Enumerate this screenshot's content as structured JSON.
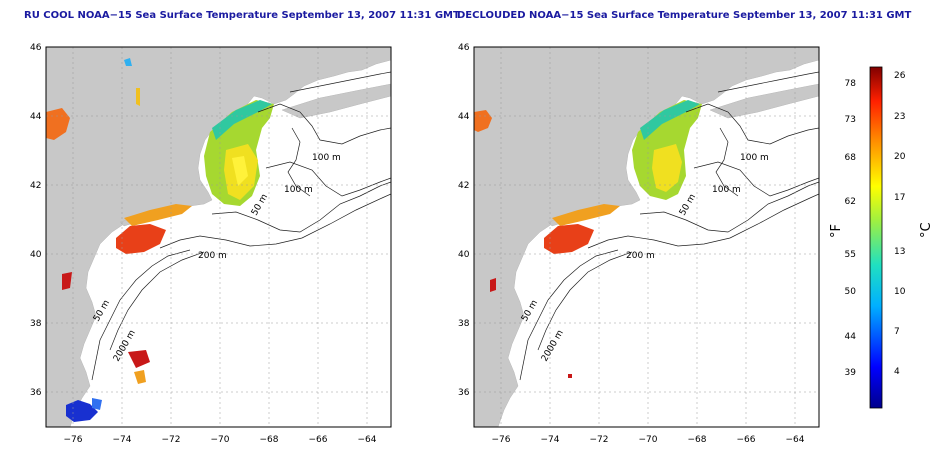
{
  "titles": {
    "left": "RU COOL NOAA−15 Sea Surface Temperature September 13, 2007 11:31 GMT",
    "right": "DECLOUDED NOAA−15 Sea Surface Temperature September 13, 2007 11:31 GMT"
  },
  "axes": {
    "lat_ticks": [
      "46",
      "44",
      "42",
      "40",
      "38",
      "36"
    ],
    "lon_ticks": [
      "−76",
      "−74",
      "−72",
      "−70",
      "−68",
      "−66",
      "−64"
    ]
  },
  "contour_labels": [
    "100 m",
    "100 m",
    "50 m",
    "200 m",
    "50 m",
    "2000 m"
  ],
  "colorbar": {
    "f_unit": "°F",
    "c_unit": "°C",
    "f_ticks": [
      "78",
      "73",
      "68",
      "62",
      "55",
      "50",
      "44",
      "39"
    ],
    "c_ticks": [
      "26",
      "23",
      "20",
      "17",
      "13",
      "10",
      "7",
      "4"
    ]
  },
  "colors": {
    "land": "#c8c8c8",
    "water": "#ffffff",
    "title": "#1a1aa0",
    "sst_warm": "#e84018",
    "sst_mid": "#f0e020",
    "sst_cool": "#30c8a0"
  }
}
